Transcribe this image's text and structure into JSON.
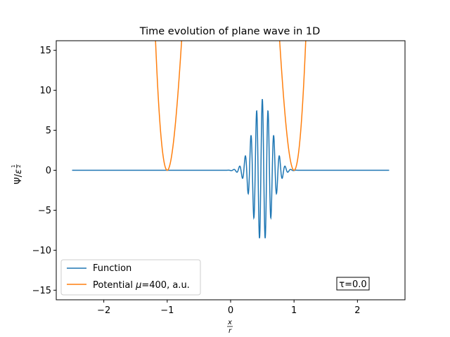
{
  "chart_data": {
    "type": "line",
    "title": "Time evolution of plane wave in 1D",
    "xlabel": "x/r",
    "ylabel": "Ψ/ε^(1/2)",
    "xlim": [
      -2.75,
      2.75
    ],
    "ylim": [
      -16.2,
      16.2
    ],
    "x_ticks": [
      -2,
      -1,
      0,
      1,
      2
    ],
    "x_tick_labels": [
      "−2",
      "−1",
      "0",
      "1",
      "2"
    ],
    "y_ticks": [
      -15,
      -10,
      -5,
      0,
      5,
      10,
      15
    ],
    "y_tick_labels": [
      "−15",
      "−10",
      "−5",
      "0",
      "5",
      "10",
      "15"
    ],
    "grid": false,
    "legend_position": "lower-left",
    "annotation": "τ=0.0",
    "series": [
      {
        "name": "Function",
        "color": "#1f77b4",
        "x_range": [
          -2.5,
          2.5
        ],
        "description_values": {
          "packet_center": 0.5,
          "amplitude": 8.9,
          "packet_width_sigma": 0.15,
          "wavenumber": 70
        }
      },
      {
        "name": "Potential μ=400, a.u.",
        "legend_prefix": "Potential ",
        "legend_mu": "μ",
        "legend_suffix": "=400, a.u.",
        "color": "#ff7f0e",
        "minima": [
          -1,
          1
        ],
        "x_range": [
          -1.35,
          1.35
        ]
      }
    ]
  }
}
